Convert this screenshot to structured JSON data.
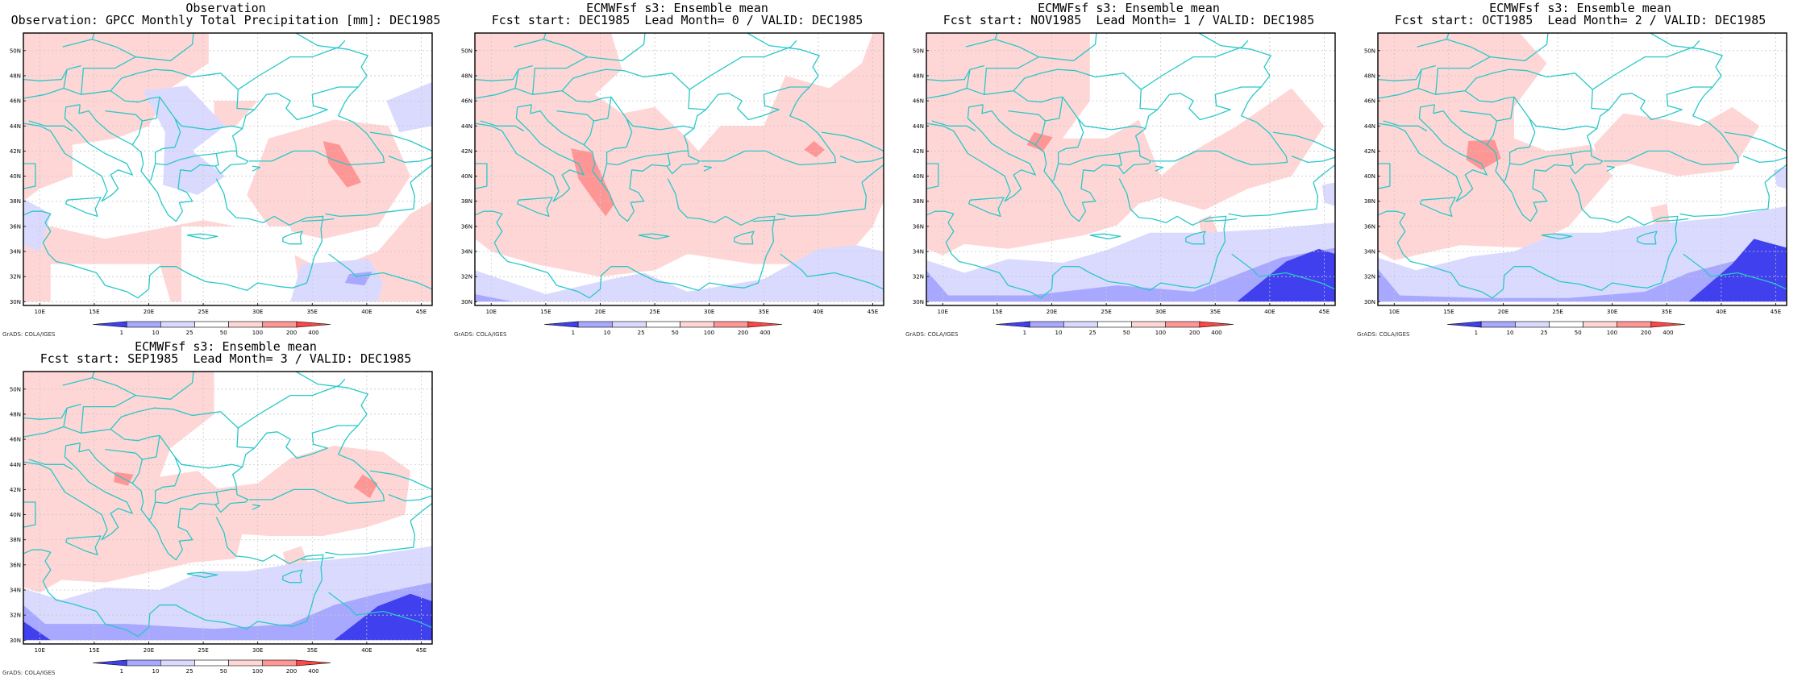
{
  "colors": {
    "background": "#ffffff",
    "coast": "#2ac8c8",
    "grid": "#c8c8c8",
    "frame": "#000000",
    "levels": [
      "#4040ee",
      "#a8a8ff",
      "#dadaff",
      "#ffffff",
      "#ffd6d6",
      "#ff9696",
      "#ff4646"
    ]
  },
  "map": {
    "lat_labels": [
      "30N",
      "32N",
      "34N",
      "36N",
      "38N",
      "40N",
      "42N",
      "44N",
      "46N",
      "48N",
      "50N"
    ],
    "lon_labels": [
      "10E",
      "15E",
      "20E",
      "25E",
      "30E",
      "35E",
      "40E",
      "45E"
    ]
  },
  "colorbar": {
    "tick_labels": [
      "1",
      "10",
      "25",
      "50",
      "100",
      "200",
      "400"
    ]
  },
  "credit": "GrADS: COLA/IGES",
  "panels": [
    {
      "title1": "Observation",
      "title2": "Observation: GPCC Monthly Total Precipitation [mm]: DEC1985"
    },
    {
      "title1": "ECMWFsf s3: Ensemble mean",
      "title2": "Fcst start: DEC1985  Lead Month= 0 / VALID: DEC1985"
    },
    {
      "title1": "ECMWFsf s3: Ensemble mean",
      "title2": "Fcst start: NOV1985  Lead Month= 1 / VALID: DEC1985"
    },
    {
      "title1": "ECMWFsf s3: Ensemble mean",
      "title2": "Fcst start: OCT1985  Lead Month= 2 / VALID: DEC1985"
    },
    {
      "title1": "ECMWFsf s3: Ensemble mean",
      "title2": "Fcst start: SEP1985  Lead Month= 3 / VALID: DEC1985"
    }
  ]
}
